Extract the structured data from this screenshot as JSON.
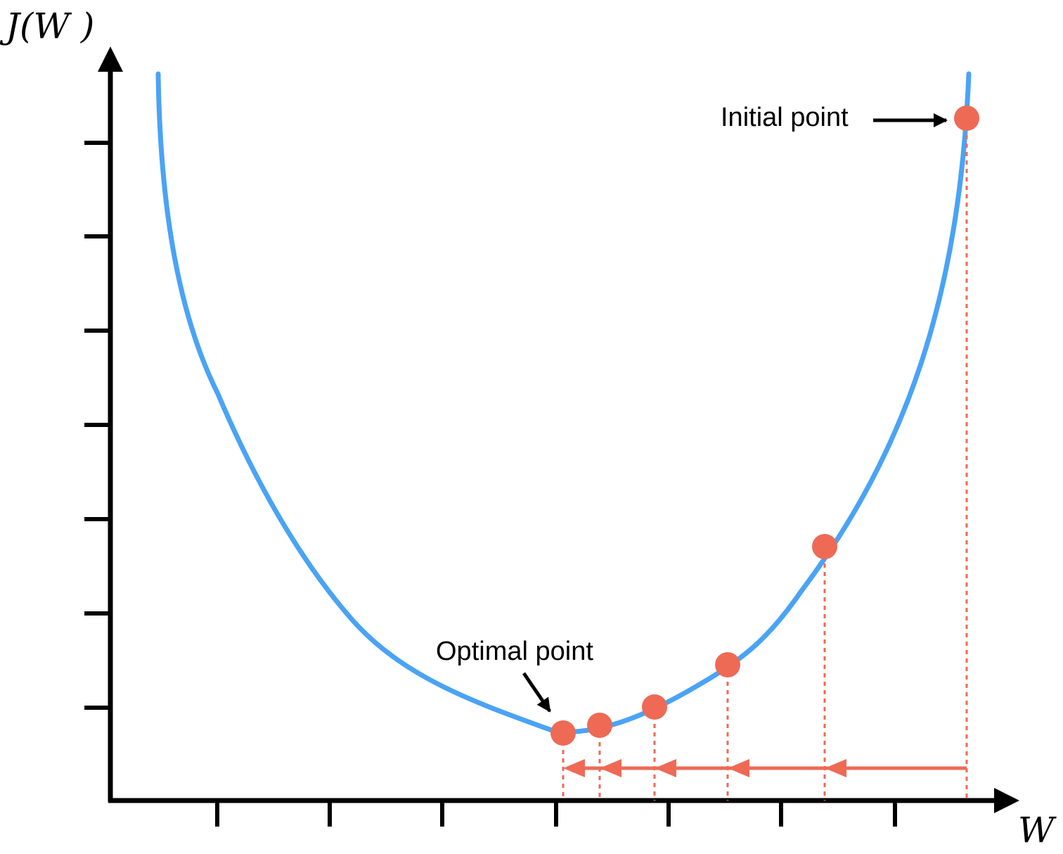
{
  "diagram": {
    "y_axis_label": "J(W )",
    "x_axis_label": "W",
    "initial_label": "Initial point",
    "optimal_label": "Optimal point",
    "colors": {
      "curve": "#4AA3F5",
      "points": "#EE6A55",
      "axes": "#000000"
    }
  }
}
